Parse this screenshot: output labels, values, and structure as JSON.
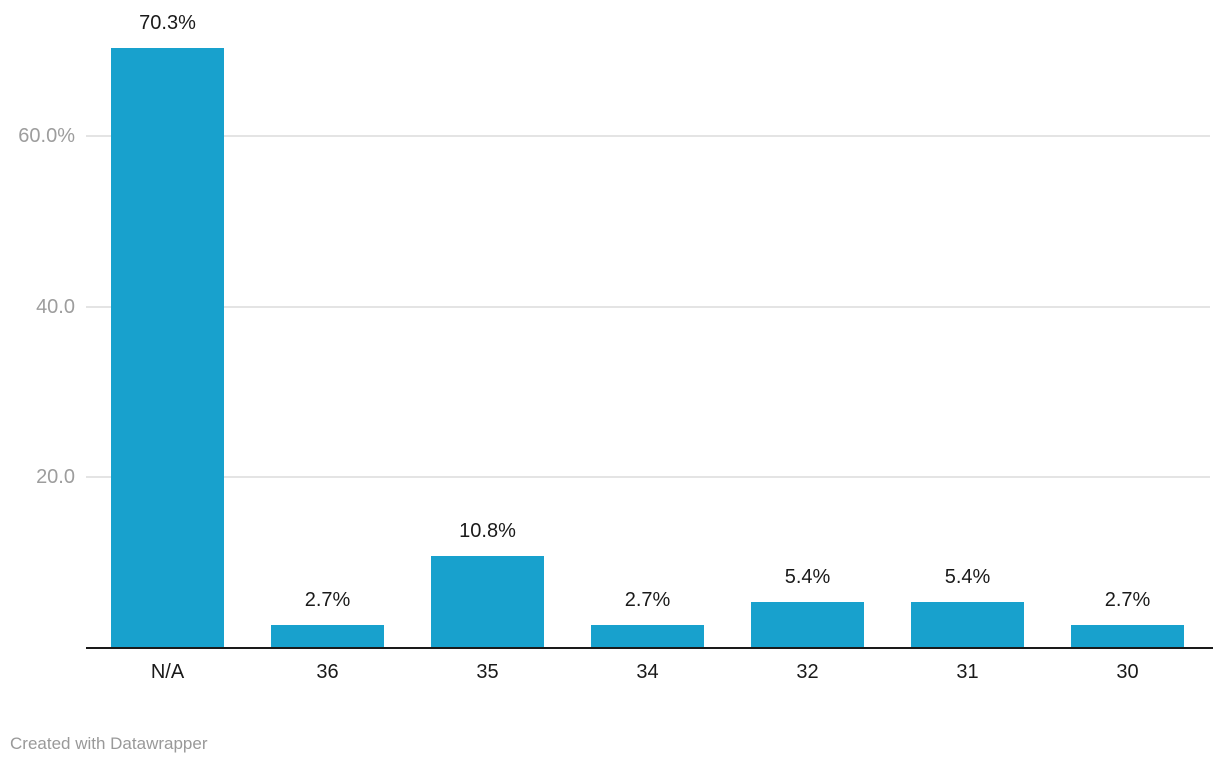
{
  "chart_data": {
    "type": "bar",
    "categories": [
      "N/A",
      "36",
      "35",
      "34",
      "32",
      "31",
      "30"
    ],
    "values": [
      70.3,
      2.7,
      10.8,
      2.7,
      5.4,
      5.4,
      2.7
    ],
    "value_labels": [
      "70.3%",
      "2.7%",
      "10.8%",
      "2.7%",
      "5.4%",
      "5.4%",
      "2.7%"
    ],
    "title": "",
    "xlabel": "",
    "ylabel": "",
    "ylim": [
      0,
      70.3
    ],
    "yticks": [
      {
        "value": 20,
        "label": "20.0"
      },
      {
        "value": 40,
        "label": "40.0"
      },
      {
        "value": 60,
        "label": "60.0%"
      }
    ],
    "grid": true,
    "legend": "none",
    "bar_color": "#18A1CD"
  },
  "footer": {
    "credit": "Created with Datawrapper"
  },
  "colors": {
    "bar": "#18A1CD",
    "grid": "#E4E4E4",
    "axis_line": "#1A1A1A",
    "value_label": "#1A1A1A",
    "category_label": "#1A1A1A",
    "y_tick_label": "#9D9D9D",
    "credit": "#999999",
    "background": "#FFFFFF"
  }
}
